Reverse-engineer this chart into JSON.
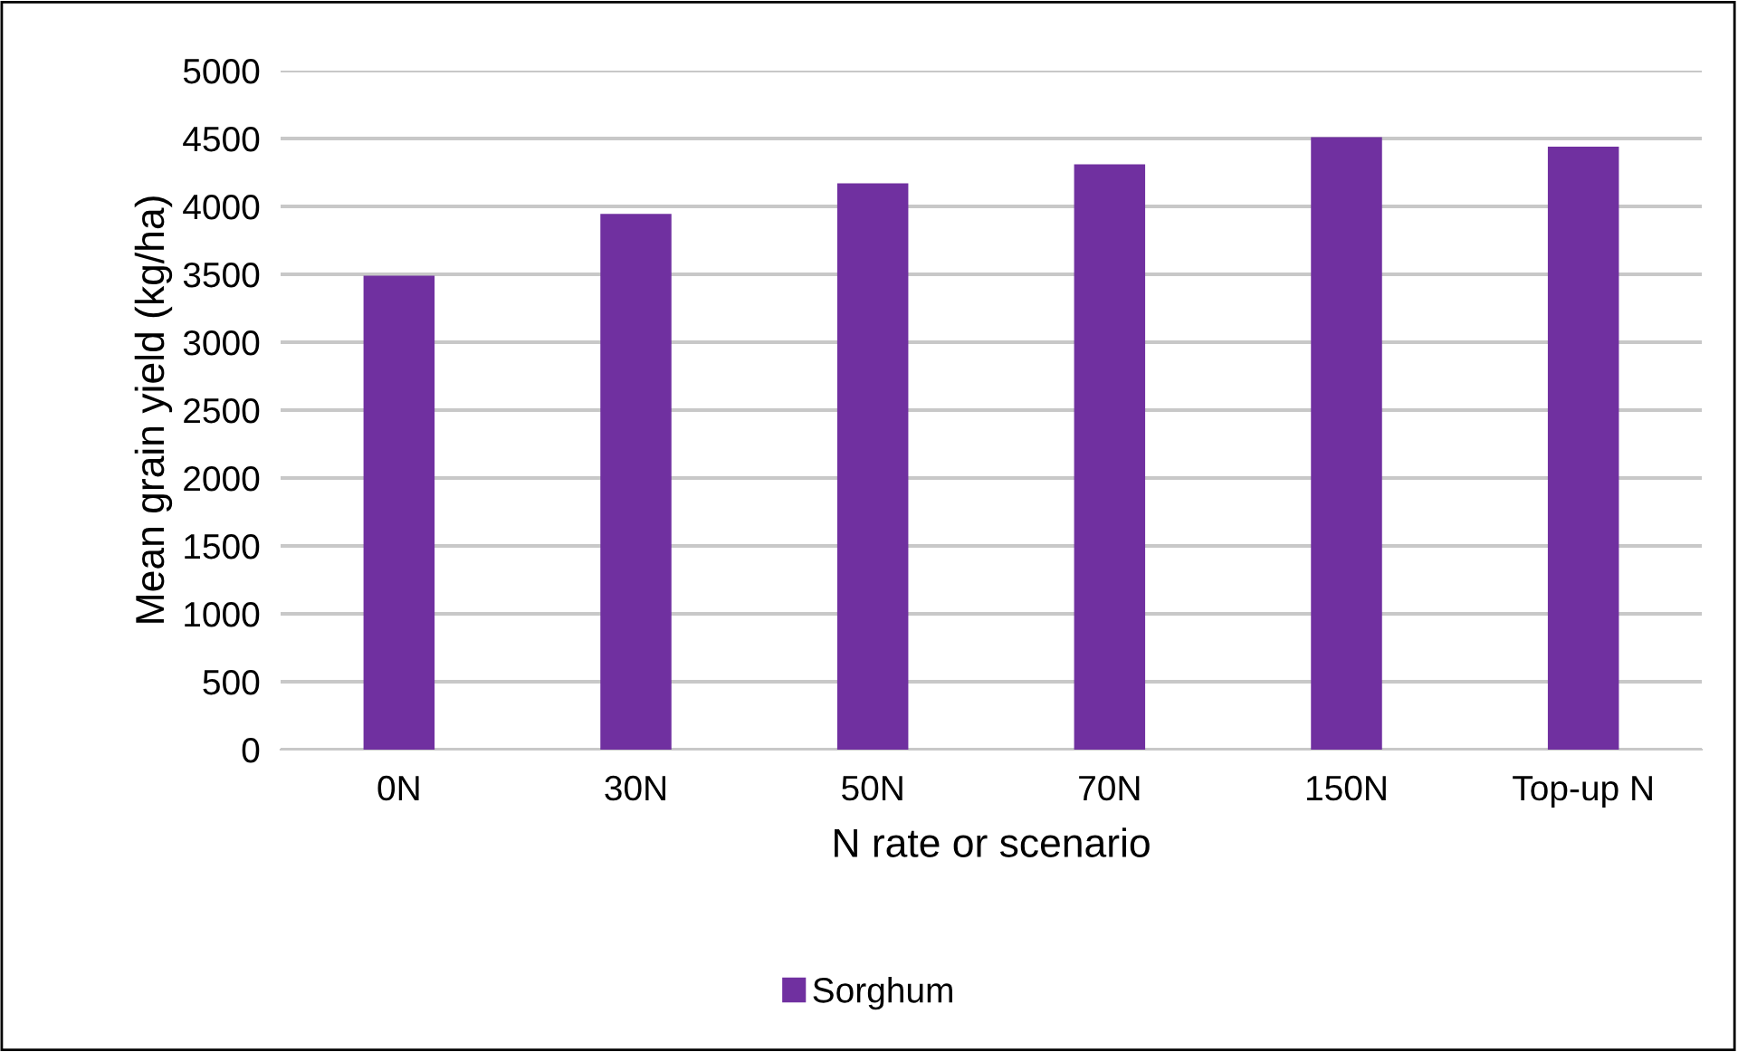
{
  "chart_data": {
    "type": "bar",
    "xlabel": "N rate or scenario",
    "ylabel": "Mean grain yield (kg/ha)",
    "categories": [
      "0N",
      "30N",
      "50N",
      "70N",
      "150N",
      "Top-up N"
    ],
    "series": [
      {
        "name": "Sorghum",
        "color": "#7030a0",
        "values": [
          3490,
          3945,
          4170,
          4310,
          4510,
          4440
        ]
      }
    ],
    "ylim": [
      0,
      5000
    ],
    "yticks": [
      0,
      500,
      1000,
      1500,
      2000,
      2500,
      3000,
      3500,
      4000,
      4500,
      5000
    ],
    "grid": "y",
    "legend": "bottom"
  }
}
